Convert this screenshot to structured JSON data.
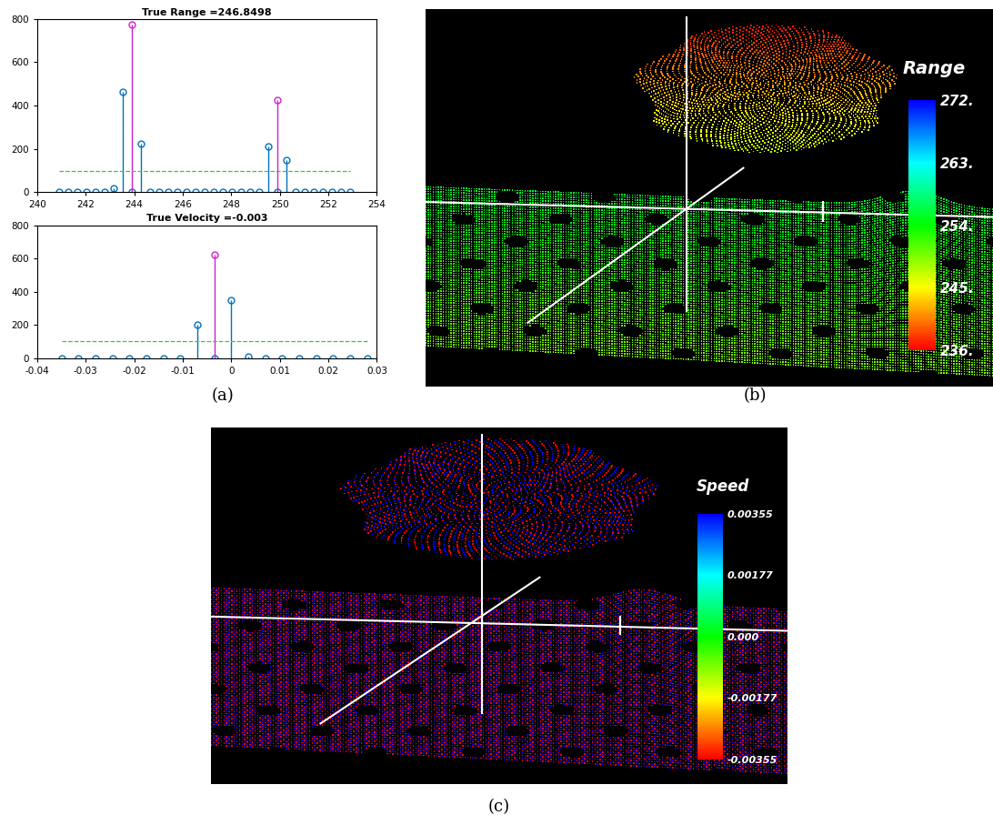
{
  "chart_data": [
    {
      "type": "stem",
      "panel_label": "(a)",
      "title": "True Range =246.8498",
      "xlim": [
        240,
        254
      ],
      "xticks": [
        240,
        242,
        244,
        246,
        248,
        250,
        252,
        254
      ],
      "ylim": [
        0,
        800
      ],
      "yticks": [
        0,
        200,
        400,
        600,
        800
      ],
      "series": [
        {
          "type": "stem",
          "color": "#0072bd",
          "marker": "circle",
          "x": [
            240.9,
            241.275,
            241.65,
            242.025,
            242.4,
            242.775,
            243.15,
            243.525,
            243.9,
            244.275,
            244.65,
            245.025,
            245.4,
            245.775,
            246.15,
            246.525,
            246.9,
            247.275,
            247.65,
            248.025,
            248.4,
            248.775,
            249.15,
            249.525,
            249.9,
            250.275,
            250.65,
            251.025,
            251.4,
            251.775,
            252.15,
            252.525,
            252.9
          ],
          "values": [
            0,
            0,
            0,
            0,
            0,
            0,
            20,
            465,
            0,
            225,
            0,
            0,
            0,
            0,
            0,
            0,
            0,
            0,
            0,
            0,
            0,
            0,
            0,
            213,
            0,
            150,
            0,
            0,
            0,
            0,
            0,
            0,
            0
          ]
        },
        {
          "type": "stem",
          "color": "#d020d0",
          "marker": "circle",
          "x": [
            243.9,
            249.9
          ],
          "values": [
            775,
            425
          ]
        },
        {
          "type": "line",
          "color": "#33cc33",
          "line_style": "dashed",
          "x": [
            240.9,
            252.9
          ],
          "values": [
            100,
            100
          ]
        }
      ]
    },
    {
      "type": "stem",
      "title": "True Velocity =-0.003",
      "xlim": [
        -0.04,
        0.03
      ],
      "xticks": [
        -0.04,
        -0.03,
        -0.02,
        -0.01,
        0,
        0.01,
        0.02,
        0.03
      ],
      "ylim": [
        0,
        800
      ],
      "yticks": [
        0,
        200,
        400,
        600,
        800
      ],
      "series": [
        {
          "type": "stem",
          "color": "#0072bd",
          "marker": "circle",
          "x": [
            -0.035,
            -0.0315,
            -0.028,
            -0.0245,
            -0.021,
            -0.0175,
            -0.014,
            -0.0105,
            -0.007,
            -0.0035,
            0,
            0.0035,
            0.007,
            0.0105,
            0.014,
            0.0175,
            0.021,
            0.0245,
            0.028
          ],
          "values": [
            0,
            0,
            0,
            0,
            0,
            0,
            0,
            0,
            200,
            0,
            350,
            8,
            0,
            0,
            0,
            0,
            0,
            0,
            0
          ]
        },
        {
          "type": "stem",
          "color": "#d020d0",
          "marker": "circle",
          "x": [
            -0.0035
          ],
          "values": [
            625
          ]
        },
        {
          "type": "line",
          "color": "#33cc33",
          "line_style": "dashed",
          "x": [
            -0.035,
            0.028
          ],
          "values": [
            100,
            100
          ]
        }
      ]
    },
    {
      "type": "point_cloud",
      "panel_label": "(b)",
      "colorbar": {
        "title": "Range",
        "range": [
          236,
          272
        ],
        "ticks": [
          {
            "value": 272,
            "label": "272."
          },
          {
            "value": 263,
            "label": "263."
          },
          {
            "value": 254,
            "label": "254."
          },
          {
            "value": 245,
            "label": "245."
          },
          {
            "value": 236,
            "label": "236."
          }
        ]
      }
    },
    {
      "type": "point_cloud",
      "panel_label": "(c)",
      "colorbar": {
        "title": "Speed",
        "range": [
          -0.00355,
          0.00355
        ],
        "ticks": [
          0.00355,
          0.00177,
          {
            "value": 0,
            "label": "0.000"
          },
          -0.00177,
          -0.00355
        ]
      }
    }
  ]
}
